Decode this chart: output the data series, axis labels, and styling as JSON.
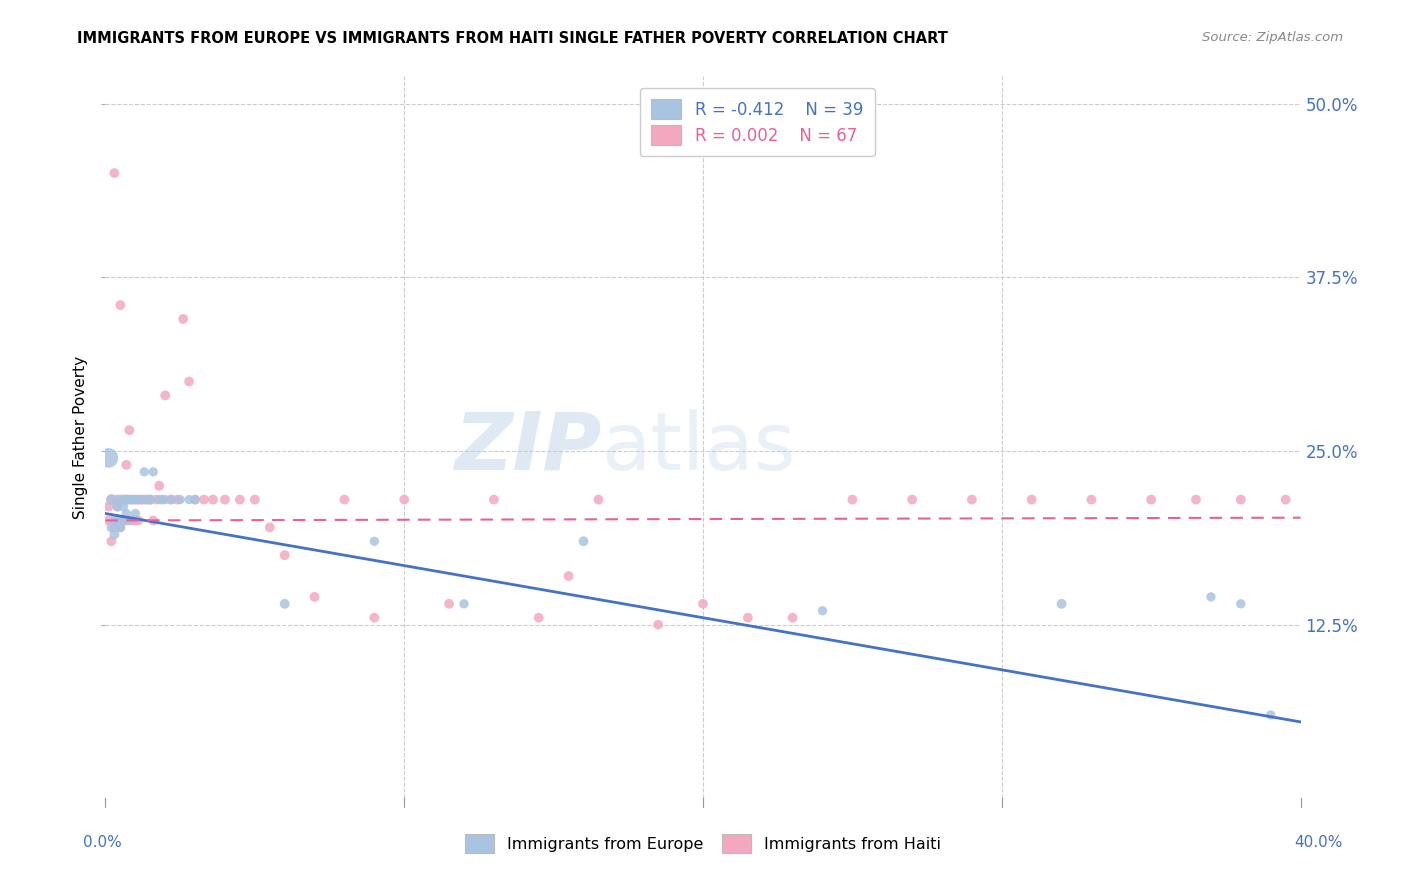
{
  "title": "IMMIGRANTS FROM EUROPE VS IMMIGRANTS FROM HAITI SINGLE FATHER POVERTY CORRELATION CHART",
  "source": "Source: ZipAtlas.com",
  "ylabel": "Single Father Poverty",
  "legend_bottom": [
    "Immigrants from Europe",
    "Immigrants from Haiti"
  ],
  "legend_top_r1": "R = -0.412",
  "legend_top_n1": "N = 39",
  "legend_top_r2": "R = 0.002",
  "legend_top_n2": "N = 67",
  "blue_color": "#a8c4e0",
  "pink_color": "#f4a8c0",
  "blue_line_color": "#4472c4",
  "pink_line_color": "#e8609a",
  "watermark_zip": "ZIP",
  "watermark_atlas": "atlas",
  "xlim": [
    0.0,
    0.4
  ],
  "ylim": [
    0.0,
    0.52
  ],
  "blue_trend_x": [
    0.0,
    0.4
  ],
  "blue_trend_y": [
    0.205,
    0.055
  ],
  "pink_trend_x": [
    0.0,
    0.4
  ],
  "pink_trend_y": [
    0.2,
    0.202
  ],
  "blue_scatter_x": [
    0.001,
    0.002,
    0.002,
    0.003,
    0.003,
    0.004,
    0.004,
    0.005,
    0.005,
    0.006,
    0.006,
    0.007,
    0.007,
    0.008,
    0.008,
    0.009,
    0.01,
    0.01,
    0.011,
    0.012,
    0.013,
    0.014,
    0.015,
    0.016,
    0.018,
    0.02,
    0.022,
    0.025,
    0.028,
    0.03,
    0.06,
    0.09,
    0.12,
    0.16,
    0.24,
    0.32,
    0.37,
    0.38,
    0.39
  ],
  "blue_scatter_y": [
    0.245,
    0.215,
    0.195,
    0.2,
    0.19,
    0.21,
    0.2,
    0.215,
    0.195,
    0.21,
    0.2,
    0.215,
    0.205,
    0.2,
    0.215,
    0.215,
    0.215,
    0.205,
    0.215,
    0.215,
    0.235,
    0.215,
    0.215,
    0.235,
    0.215,
    0.215,
    0.215,
    0.215,
    0.215,
    0.215,
    0.14,
    0.185,
    0.14,
    0.185,
    0.135,
    0.14,
    0.145,
    0.14,
    0.06
  ],
  "blue_scatter_size": [
    200,
    60,
    50,
    55,
    50,
    50,
    45,
    50,
    45,
    50,
    45,
    50,
    45,
    45,
    45,
    45,
    45,
    45,
    45,
    45,
    45,
    45,
    50,
    45,
    45,
    45,
    45,
    45,
    45,
    45,
    50,
    45,
    45,
    50,
    45,
    50,
    45,
    45,
    45
  ],
  "pink_scatter_x": [
    0.001,
    0.001,
    0.002,
    0.002,
    0.003,
    0.003,
    0.004,
    0.004,
    0.004,
    0.005,
    0.005,
    0.006,
    0.006,
    0.007,
    0.007,
    0.007,
    0.008,
    0.008,
    0.009,
    0.009,
    0.01,
    0.01,
    0.011,
    0.011,
    0.012,
    0.013,
    0.014,
    0.015,
    0.016,
    0.017,
    0.018,
    0.019,
    0.02,
    0.022,
    0.024,
    0.026,
    0.028,
    0.03,
    0.033,
    0.036,
    0.04,
    0.045,
    0.05,
    0.055,
    0.06,
    0.07,
    0.08,
    0.09,
    0.1,
    0.115,
    0.13,
    0.145,
    0.155,
    0.165,
    0.185,
    0.2,
    0.215,
    0.23,
    0.25,
    0.27,
    0.29,
    0.31,
    0.33,
    0.35,
    0.365,
    0.38,
    0.395
  ],
  "pink_scatter_y": [
    0.21,
    0.2,
    0.215,
    0.185,
    0.45,
    0.195,
    0.21,
    0.2,
    0.215,
    0.355,
    0.195,
    0.215,
    0.2,
    0.24,
    0.215,
    0.2,
    0.265,
    0.215,
    0.215,
    0.2,
    0.215,
    0.2,
    0.215,
    0.2,
    0.215,
    0.215,
    0.215,
    0.215,
    0.2,
    0.215,
    0.225,
    0.215,
    0.29,
    0.215,
    0.215,
    0.345,
    0.3,
    0.215,
    0.215,
    0.215,
    0.215,
    0.215,
    0.215,
    0.195,
    0.175,
    0.145,
    0.215,
    0.13,
    0.215,
    0.14,
    0.215,
    0.13,
    0.16,
    0.215,
    0.125,
    0.14,
    0.13,
    0.13,
    0.215,
    0.215,
    0.215,
    0.215,
    0.215,
    0.215,
    0.215,
    0.215,
    0.215
  ],
  "pink_scatter_size": [
    50,
    50,
    50,
    50,
    50,
    50,
    50,
    50,
    50,
    50,
    50,
    50,
    50,
    50,
    50,
    50,
    50,
    50,
    50,
    50,
    50,
    50,
    50,
    50,
    50,
    50,
    50,
    50,
    50,
    50,
    50,
    50,
    50,
    50,
    50,
    50,
    50,
    50,
    50,
    50,
    50,
    50,
    50,
    50,
    50,
    50,
    50,
    50,
    50,
    50,
    50,
    50,
    50,
    50,
    50,
    50,
    50,
    50,
    50,
    50,
    50,
    50,
    50,
    50,
    50,
    50,
    50
  ]
}
